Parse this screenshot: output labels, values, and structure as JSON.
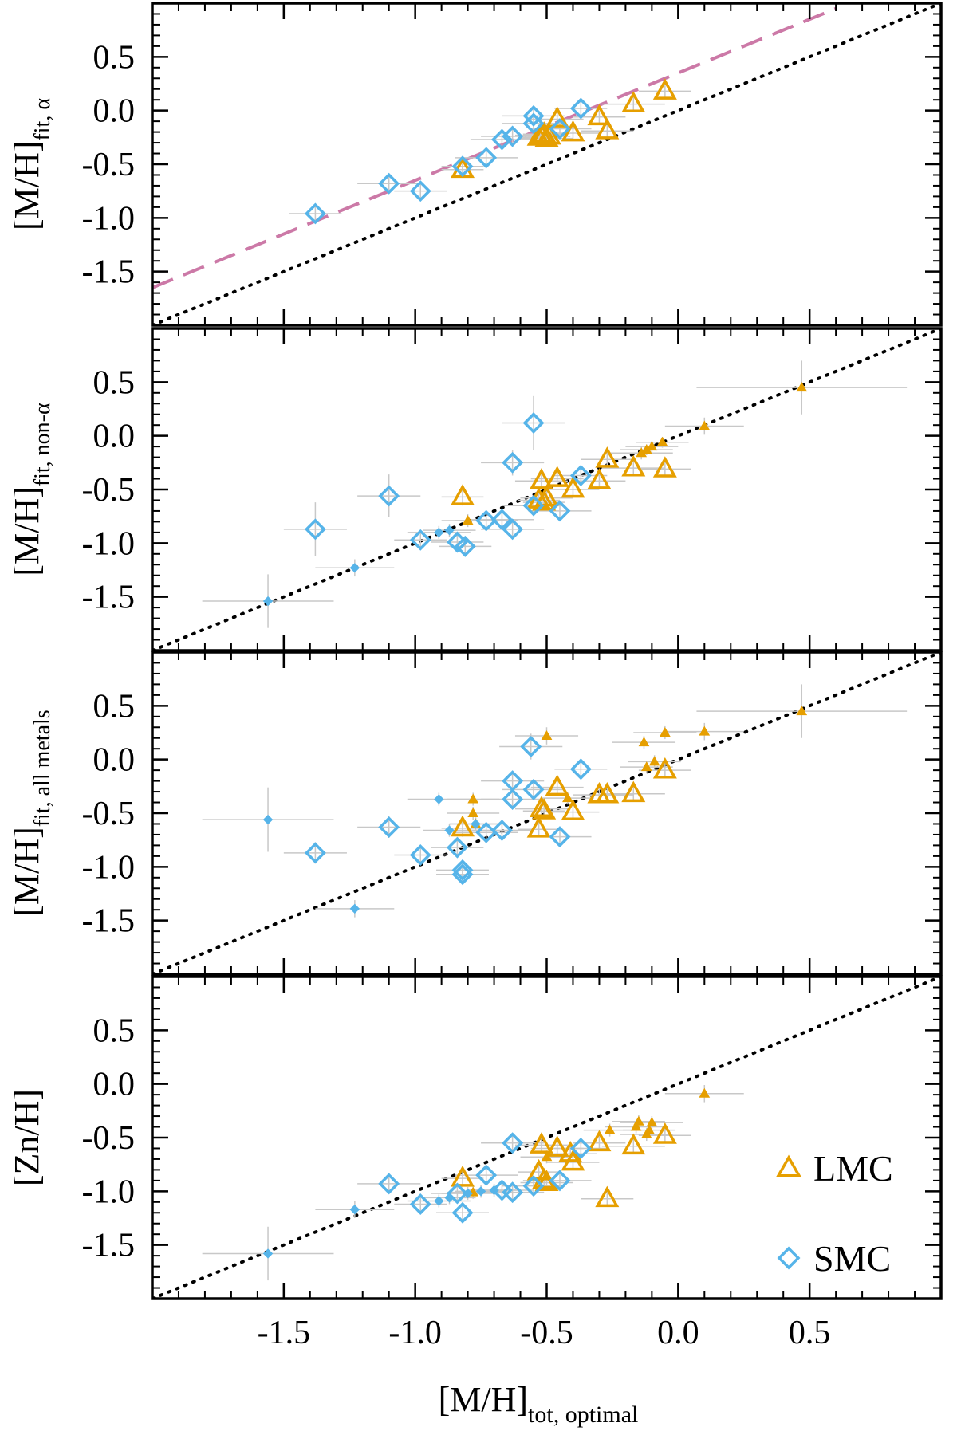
{
  "figure": {
    "xlabel_main": "[M/H]",
    "xlabel_sub": "tot, optimal",
    "xlim": [
      -2.0,
      1.0
    ],
    "xticks": [
      -1.5,
      -1.0,
      -0.5,
      0.0,
      0.5
    ],
    "xtick_labels": [
      "-1.5",
      "-1.0",
      "-0.5",
      "0.0",
      "0.5"
    ],
    "yticks": [
      -1.5,
      -1.0,
      -0.5,
      0.0,
      0.5
    ],
    "ytick_labels": [
      "-1.5",
      "-1.0",
      "-0.5",
      "0.0",
      "0.5"
    ],
    "legend": {
      "position": "bottom-right of bottom panel",
      "entries": [
        {
          "label": "LMC",
          "marker": "triangle",
          "color": "#e69f00"
        },
        {
          "label": "SMC",
          "marker": "diamond",
          "color": "#56b4e9"
        }
      ]
    },
    "colors": {
      "LMC": "#e69f00",
      "SMC": "#56b4e9",
      "fit_line": "#cc79a7",
      "one_to_one": "#000000",
      "errorbar": "#c8c8c8"
    }
  },
  "chart_data": [
    {
      "type": "scatter",
      "panel": 1,
      "ylabel_main": "[M/H]",
      "ylabel_sub": "fit, α",
      "ylim": [
        -2.0,
        1.0
      ],
      "lines": [
        {
          "style": "dotted",
          "color": "#000000",
          "x": [
            -2.0,
            1.0
          ],
          "y": [
            -2.0,
            1.0
          ]
        },
        {
          "style": "dashed",
          "color": "#cc79a7",
          "x": [
            -2.0,
            0.6
          ],
          "y": [
            -1.65,
            0.95
          ]
        }
      ],
      "series": [
        {
          "name": "LMC",
          "points": [
            [
              -0.82,
              -0.55,
              0.08,
              0.06
            ],
            [
              -0.52,
              -0.23,
              0.1,
              0.05
            ],
            [
              -0.53,
              -0.25,
              0.08,
              0.05
            ],
            [
              -0.51,
              -0.22,
              0.08,
              0.05
            ],
            [
              -0.5,
              -0.26,
              0.1,
              0.05
            ],
            [
              -0.49,
              -0.24,
              0.08,
              0.05
            ],
            [
              -0.46,
              -0.08,
              0.1,
              0.07
            ],
            [
              -0.4,
              -0.21,
              0.1,
              0.06
            ],
            [
              -0.3,
              -0.06,
              0.1,
              0.06
            ],
            [
              -0.27,
              -0.19,
              0.1,
              0.06
            ],
            [
              -0.17,
              0.06,
              0.12,
              0.07
            ],
            [
              -0.05,
              0.18,
              0.1,
              0.07
            ]
          ]
        },
        {
          "name": "SMC",
          "points": [
            [
              -1.38,
              -0.96,
              0.1,
              0.08
            ],
            [
              -1.1,
              -0.68,
              0.12,
              0.08
            ],
            [
              -0.98,
              -0.75,
              0.1,
              0.08
            ],
            [
              -0.82,
              -0.52,
              0.08,
              0.06
            ],
            [
              -0.73,
              -0.44,
              0.12,
              0.07
            ],
            [
              -0.67,
              -0.27,
              0.12,
              0.07
            ],
            [
              -0.63,
              -0.24,
              0.12,
              0.07
            ],
            [
              -0.55,
              -0.12,
              0.12,
              0.08
            ],
            [
              -0.55,
              -0.05,
              0.12,
              0.08
            ],
            [
              -0.45,
              -0.17,
              0.12,
              0.07
            ],
            [
              -0.37,
              0.02,
              0.1,
              0.07
            ]
          ]
        }
      ]
    },
    {
      "type": "scatter",
      "panel": 2,
      "ylabel_main": "[M/H]",
      "ylabel_sub": "fit, non-α",
      "ylim": [
        -2.0,
        1.0
      ],
      "lines": [
        {
          "style": "dotted",
          "color": "#000000",
          "x": [
            -2.0,
            1.0
          ],
          "y": [
            -2.0,
            1.0
          ]
        }
      ],
      "series": [
        {
          "name": "LMC",
          "points": [
            [
              -0.82,
              -0.57,
              0.08,
              0.08
            ],
            [
              -0.52,
              -0.42,
              0.1,
              0.07
            ],
            [
              -0.53,
              -0.6,
              0.08,
              0.07
            ],
            [
              -0.51,
              -0.62,
              0.08,
              0.07
            ],
            [
              -0.5,
              -0.58,
              0.1,
              0.07
            ],
            [
              -0.46,
              -0.4,
              0.1,
              0.07
            ],
            [
              -0.4,
              -0.5,
              0.1,
              0.07
            ],
            [
              -0.3,
              -0.42,
              0.1,
              0.07
            ],
            [
              -0.27,
              -0.22,
              0.1,
              0.07
            ],
            [
              -0.17,
              -0.3,
              0.12,
              0.07
            ],
            [
              -0.05,
              -0.31,
              0.1,
              0.07
            ]
          ]
        },
        {
          "name": "LMC",
          "small": true,
          "points": [
            [
              -0.8,
              -0.79,
              0.1,
              0.06
            ],
            [
              -0.14,
              -0.16,
              0.12,
              0.06
            ],
            [
              -0.12,
              -0.13,
              0.1,
              0.05
            ],
            [
              -0.1,
              -0.1,
              0.1,
              0.05
            ],
            [
              -0.06,
              -0.06,
              0.1,
              0.05
            ],
            [
              0.1,
              0.09,
              0.15,
              0.08
            ],
            [
              0.47,
              0.45,
              0.4,
              0.25
            ]
          ]
        },
        {
          "name": "SMC",
          "points": [
            [
              -1.38,
              -0.87,
              0.12,
              0.25
            ],
            [
              -1.1,
              -0.56,
              0.12,
              0.2
            ],
            [
              -0.98,
              -0.97,
              0.1,
              0.08
            ],
            [
              -0.84,
              -0.99,
              0.1,
              0.08
            ],
            [
              -0.81,
              -1.03,
              0.1,
              0.08
            ],
            [
              -0.73,
              -0.79,
              0.12,
              0.08
            ],
            [
              -0.67,
              -0.78,
              0.12,
              0.08
            ],
            [
              -0.63,
              -0.87,
              0.12,
              0.08
            ],
            [
              -0.63,
              -0.25,
              0.12,
              0.12
            ],
            [
              -0.55,
              0.12,
              0.12,
              0.25
            ],
            [
              -0.55,
              -0.65,
              0.12,
              0.08
            ],
            [
              -0.45,
              -0.7,
              0.12,
              0.08
            ],
            [
              -0.37,
              -0.37,
              0.1,
              0.08
            ]
          ]
        },
        {
          "name": "SMC",
          "small": true,
          "points": [
            [
              -1.56,
              -1.54,
              0.25,
              0.25
            ],
            [
              -1.23,
              -1.23,
              0.15,
              0.08
            ],
            [
              -0.91,
              -0.9,
              0.12,
              0.06
            ],
            [
              -0.87,
              -0.88,
              0.1,
              0.06
            ]
          ]
        }
      ]
    },
    {
      "type": "scatter",
      "panel": 3,
      "ylabel_main": "[M/H]",
      "ylabel_sub": "fit, all metals",
      "ylim": [
        -2.0,
        1.0
      ],
      "lines": [
        {
          "style": "dotted",
          "color": "#000000",
          "x": [
            -2.0,
            1.0
          ],
          "y": [
            -2.0,
            1.0
          ]
        }
      ],
      "series": [
        {
          "name": "LMC",
          "points": [
            [
              -0.82,
              -0.64,
              0.08,
              0.08
            ],
            [
              -0.52,
              -0.46,
              0.1,
              0.07
            ],
            [
              -0.53,
              -0.65,
              0.08,
              0.07
            ],
            [
              -0.51,
              -0.48,
              0.08,
              0.07
            ],
            [
              -0.46,
              -0.26,
              0.1,
              0.07
            ],
            [
              -0.4,
              -0.49,
              0.1,
              0.07
            ],
            [
              -0.3,
              -0.33,
              0.1,
              0.07
            ],
            [
              -0.27,
              -0.33,
              0.1,
              0.07
            ],
            [
              -0.17,
              -0.32,
              0.12,
              0.07
            ],
            [
              -0.05,
              -0.1,
              0.1,
              0.07
            ]
          ]
        },
        {
          "name": "LMC",
          "small": true,
          "points": [
            [
              -0.78,
              -0.37,
              0.1,
              0.06
            ],
            [
              -0.78,
              -0.5,
              0.1,
              0.06
            ],
            [
              -0.77,
              -0.6,
              0.1,
              0.06
            ],
            [
              -0.5,
              0.22,
              0.12,
              0.08
            ],
            [
              -0.42,
              -0.36,
              0.1,
              0.06
            ],
            [
              -0.13,
              0.16,
              0.12,
              0.06
            ],
            [
              -0.12,
              -0.07,
              0.1,
              0.06
            ],
            [
              -0.09,
              -0.02,
              0.1,
              0.06
            ],
            [
              -0.05,
              0.25,
              0.12,
              0.06
            ],
            [
              0.1,
              0.26,
              0.15,
              0.08
            ],
            [
              0.47,
              0.45,
              0.4,
              0.25
            ]
          ]
        },
        {
          "name": "SMC",
          "points": [
            [
              -1.38,
              -0.87,
              0.12,
              0.1
            ],
            [
              -1.1,
              -0.63,
              0.12,
              0.1
            ],
            [
              -0.98,
              -0.89,
              0.1,
              0.08
            ],
            [
              -0.84,
              -0.82,
              0.1,
              0.08
            ],
            [
              -0.82,
              -1.03,
              0.1,
              0.08
            ],
            [
              -0.82,
              -1.07,
              0.1,
              0.08
            ],
            [
              -0.73,
              -0.68,
              0.12,
              0.08
            ],
            [
              -0.67,
              -0.66,
              0.12,
              0.08
            ],
            [
              -0.63,
              -0.37,
              0.12,
              0.08
            ],
            [
              -0.63,
              -0.2,
              0.12,
              0.08
            ],
            [
              -0.56,
              0.12,
              0.12,
              0.12
            ],
            [
              -0.55,
              -0.28,
              0.12,
              0.08
            ],
            [
              -0.45,
              -0.72,
              0.12,
              0.08
            ],
            [
              -0.37,
              -0.09,
              0.1,
              0.08
            ]
          ]
        },
        {
          "name": "SMC",
          "small": true,
          "points": [
            [
              -1.56,
              -0.56,
              0.25,
              0.3
            ],
            [
              -1.23,
              -1.39,
              0.15,
              0.08
            ],
            [
              -0.91,
              -0.37,
              0.12,
              0.06
            ],
            [
              -0.87,
              -0.66,
              0.1,
              0.06
            ],
            [
              -0.77,
              -0.6,
              0.1,
              0.06
            ]
          ]
        }
      ]
    },
    {
      "type": "scatter",
      "panel": 4,
      "ylabel_main": "[Zn/H]",
      "ylabel_sub": "",
      "ylim": [
        -2.0,
        1.0
      ],
      "lines": [
        {
          "style": "dotted",
          "color": "#000000",
          "x": [
            -2.0,
            1.0
          ],
          "y": [
            -2.0,
            1.0
          ]
        }
      ],
      "series": [
        {
          "name": "LMC",
          "points": [
            [
              -0.82,
              -0.88,
              0.08,
              0.08
            ],
            [
              -0.52,
              -0.57,
              0.1,
              0.07
            ],
            [
              -0.53,
              -0.82,
              0.08,
              0.07
            ],
            [
              -0.51,
              -0.9,
              0.08,
              0.07
            ],
            [
              -0.5,
              -0.92,
              0.1,
              0.07
            ],
            [
              -0.46,
              -0.6,
              0.1,
              0.07
            ],
            [
              -0.41,
              -0.65,
              0.1,
              0.07
            ],
            [
              -0.4,
              -0.73,
              0.1,
              0.07
            ],
            [
              -0.3,
              -0.55,
              0.1,
              0.07
            ],
            [
              -0.27,
              -1.07,
              0.1,
              0.07
            ],
            [
              -0.17,
              -0.58,
              0.12,
              0.07
            ],
            [
              -0.05,
              -0.48,
              0.1,
              0.07
            ]
          ]
        },
        {
          "name": "LMC",
          "small": true,
          "points": [
            [
              -0.78,
              -1.01,
              0.1,
              0.06
            ],
            [
              -0.5,
              -0.68,
              0.1,
              0.06
            ],
            [
              -0.26,
              -0.43,
              0.1,
              0.06
            ],
            [
              -0.16,
              -0.4,
              0.12,
              0.06
            ],
            [
              -0.15,
              -0.35,
              0.1,
              0.06
            ],
            [
              -0.12,
              -0.47,
              0.1,
              0.06
            ],
            [
              -0.11,
              -0.43,
              0.1,
              0.06
            ],
            [
              -0.1,
              -0.36,
              0.12,
              0.06
            ],
            [
              0.1,
              -0.09,
              0.15,
              0.08
            ]
          ]
        },
        {
          "name": "SMC",
          "points": [
            [
              -1.1,
              -0.93,
              0.12,
              0.08
            ],
            [
              -0.98,
              -1.12,
              0.1,
              0.08
            ],
            [
              -0.84,
              -1.02,
              0.1,
              0.08
            ],
            [
              -0.82,
              -1.2,
              0.1,
              0.08
            ],
            [
              -0.73,
              -0.85,
              0.12,
              0.08
            ],
            [
              -0.67,
              -0.99,
              0.12,
              0.08
            ],
            [
              -0.63,
              -1.01,
              0.12,
              0.08
            ],
            [
              -0.63,
              -0.55,
              0.12,
              0.08
            ],
            [
              -0.55,
              -0.95,
              0.12,
              0.08
            ],
            [
              -0.45,
              -0.9,
              0.12,
              0.08
            ],
            [
              -0.37,
              -0.6,
              0.1,
              0.08
            ]
          ]
        },
        {
          "name": "SMC",
          "small": true,
          "points": [
            [
              -1.56,
              -1.58,
              0.25,
              0.25
            ],
            [
              -1.23,
              -1.17,
              0.15,
              0.08
            ],
            [
              -0.91,
              -1.09,
              0.12,
              0.06
            ],
            [
              -0.87,
              -1.06,
              0.1,
              0.06
            ],
            [
              -0.8,
              -1.02,
              0.1,
              0.06
            ],
            [
              -0.75,
              -1.0,
              0.1,
              0.06
            ],
            [
              -0.7,
              -0.99,
              0.1,
              0.06
            ]
          ]
        }
      ]
    }
  ]
}
